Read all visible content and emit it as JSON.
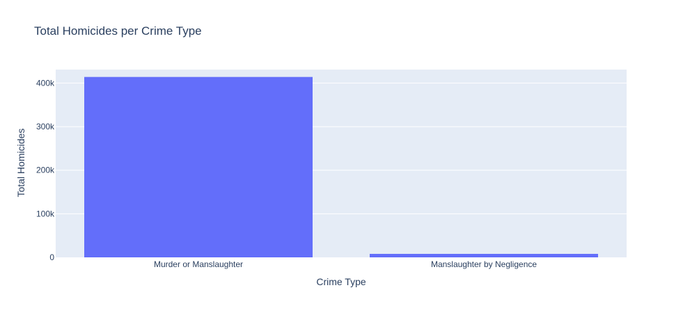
{
  "chart_data": {
    "type": "bar",
    "title": "Total Homicides per Crime Type",
    "xlabel": "Crime Type",
    "ylabel": "Total Homicides",
    "categories": [
      "Murder or Manslaughter",
      "Manslaughter by Negligence"
    ],
    "values": [
      414000,
      8000
    ],
    "ylim": [
      0,
      431000
    ],
    "yticks": [
      0,
      100000,
      200000,
      300000,
      400000
    ],
    "ytick_labels": [
      "0",
      "100k",
      "200k",
      "300k",
      "400k"
    ],
    "grid": true,
    "colors": {
      "bar": "#636efa",
      "plot_bg": "#e5ecf6",
      "grid": "#ffffff",
      "text": "#2a3f5f"
    }
  }
}
